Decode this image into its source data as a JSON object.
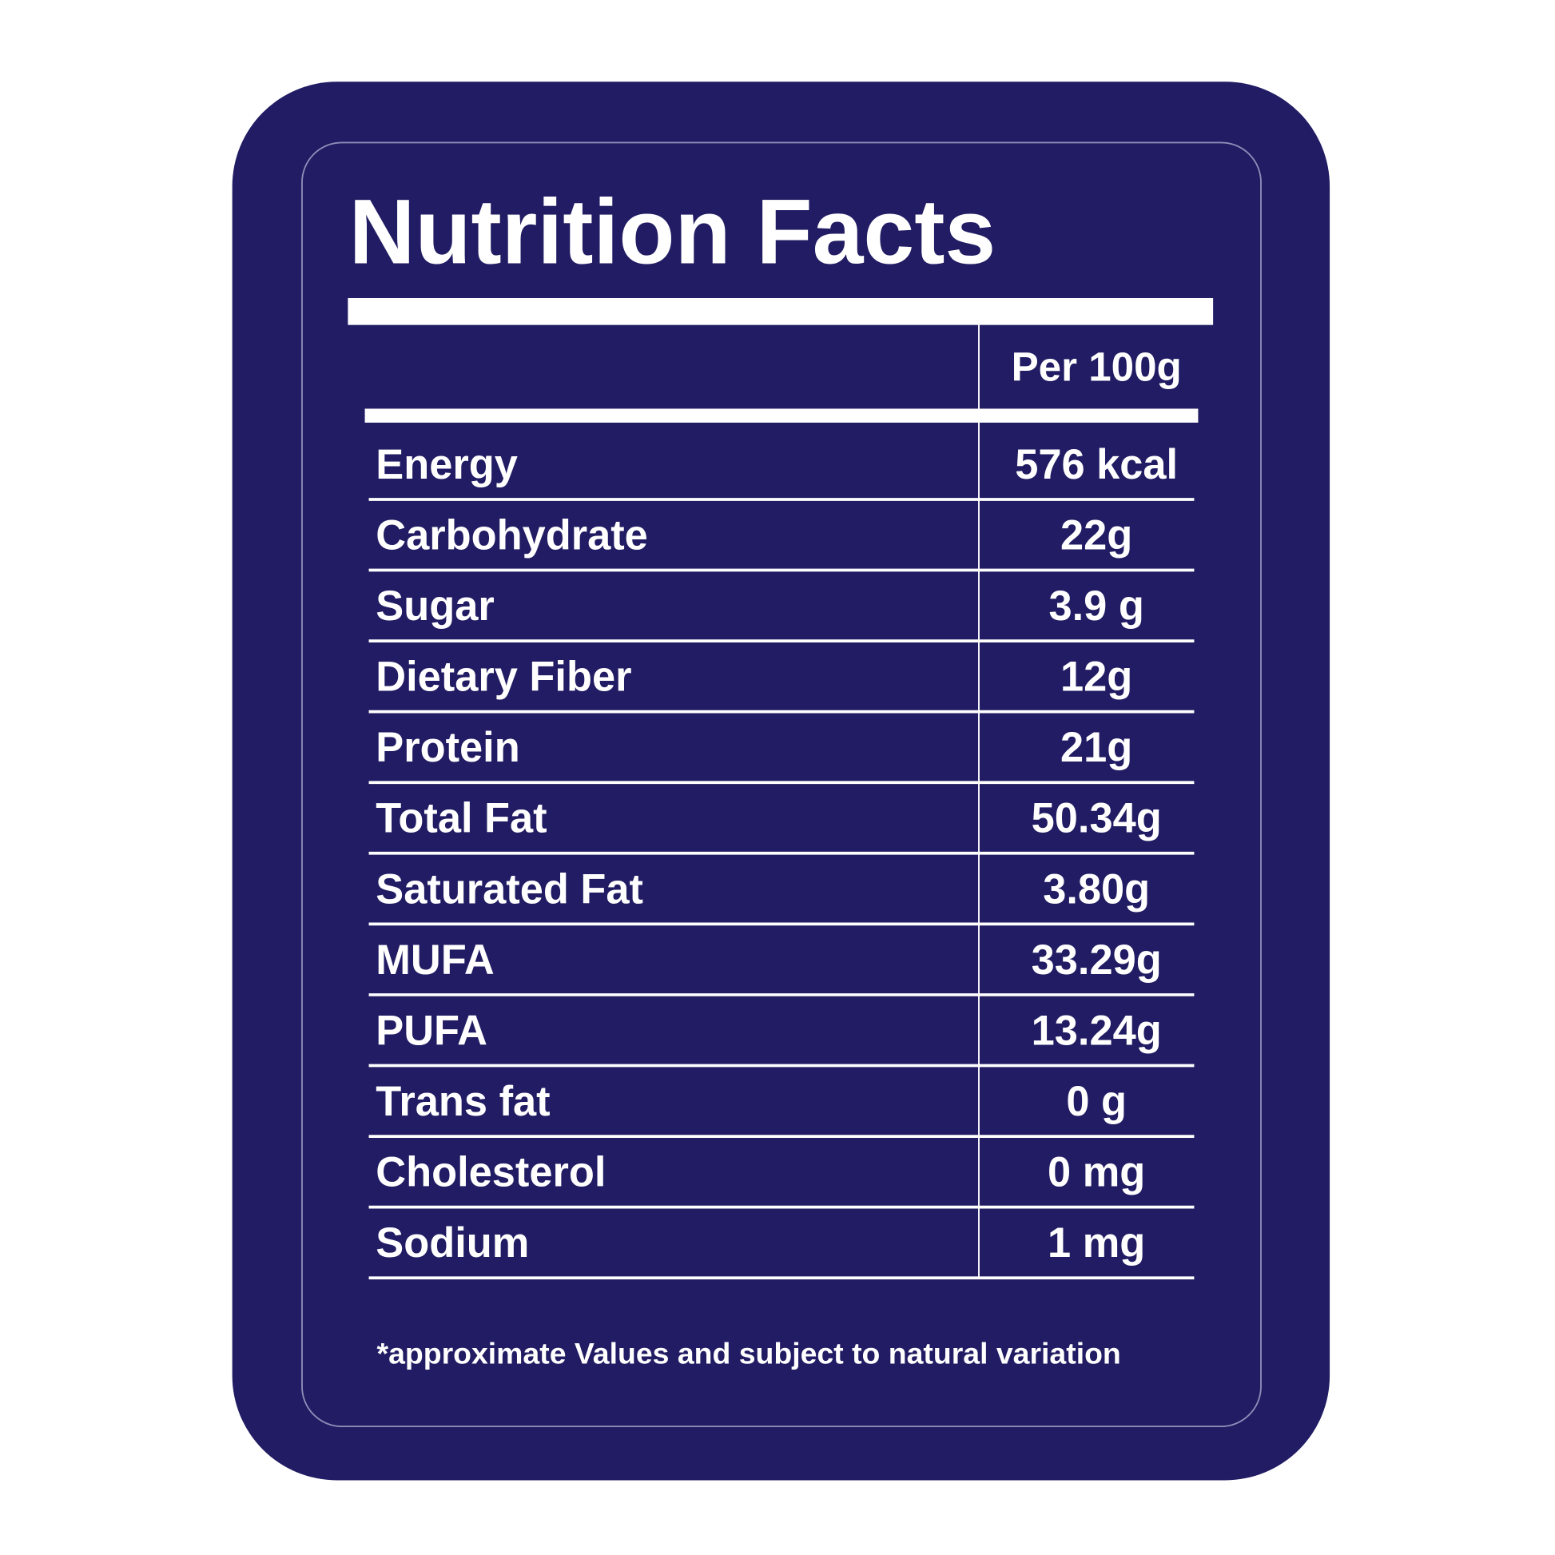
{
  "title": "Nutrition Facts",
  "table": {
    "header": "Per 100g",
    "rows": [
      [
        "Energy",
        "576 kcal"
      ],
      [
        "Carbohydrate",
        "22g"
      ],
      [
        "Sugar",
        "3.9 g"
      ],
      [
        "Dietary Fiber",
        "12g"
      ],
      [
        "Protein",
        "21g"
      ],
      [
        "Total Fat",
        "50.34g"
      ],
      [
        "Saturated Fat",
        "3.80g"
      ],
      [
        "MUFA",
        "33.29g"
      ],
      [
        "PUFA",
        "13.24g"
      ],
      [
        "Trans fat",
        "0 g"
      ],
      [
        "Cholesterol",
        "0 mg"
      ],
      [
        "Sodium",
        "1 mg"
      ]
    ]
  },
  "footnote": "*approximate Values and subject to natural variation"
}
